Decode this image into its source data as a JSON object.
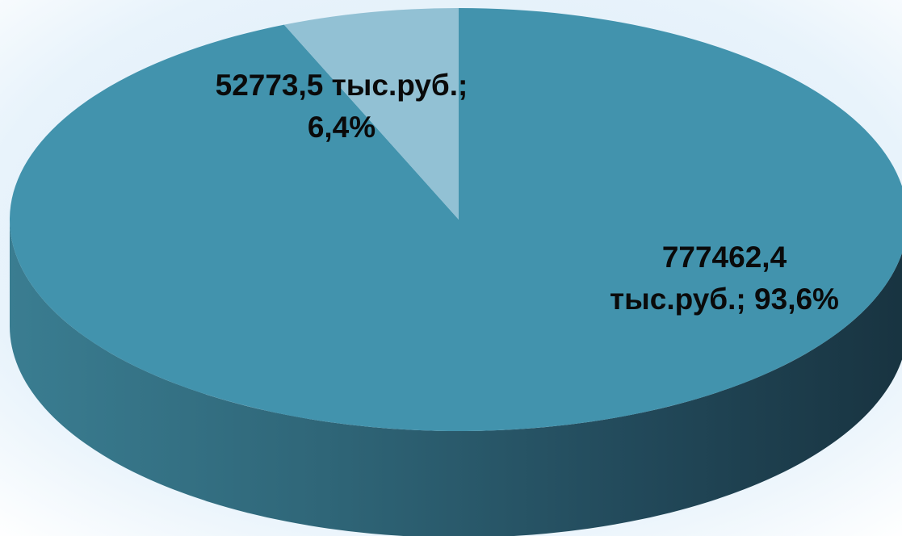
{
  "chart_data": {
    "type": "pie",
    "variant": "3d",
    "title": "",
    "unit": "тыс.руб.",
    "slices": [
      {
        "value": 777462.4,
        "percent": 93.6,
        "label_line1": "777462,4",
        "label_line2": "тыс.руб.; 93,6%",
        "color": "#4293ad",
        "side_color_light": "#3f8499",
        "side_color_dark": "#1a3743"
      },
      {
        "value": 52773.5,
        "percent": 6.4,
        "label_line1": "52773,5 тыс.руб.;",
        "label_line2": "6,4%",
        "color": "#92c1d4",
        "side_color_light": "#7fb0c3",
        "side_color_dark": "#5f8fa1"
      }
    ],
    "legend": "none"
  },
  "colors": {
    "background": "#e6f2fb",
    "background_edge": "#ffffff"
  }
}
